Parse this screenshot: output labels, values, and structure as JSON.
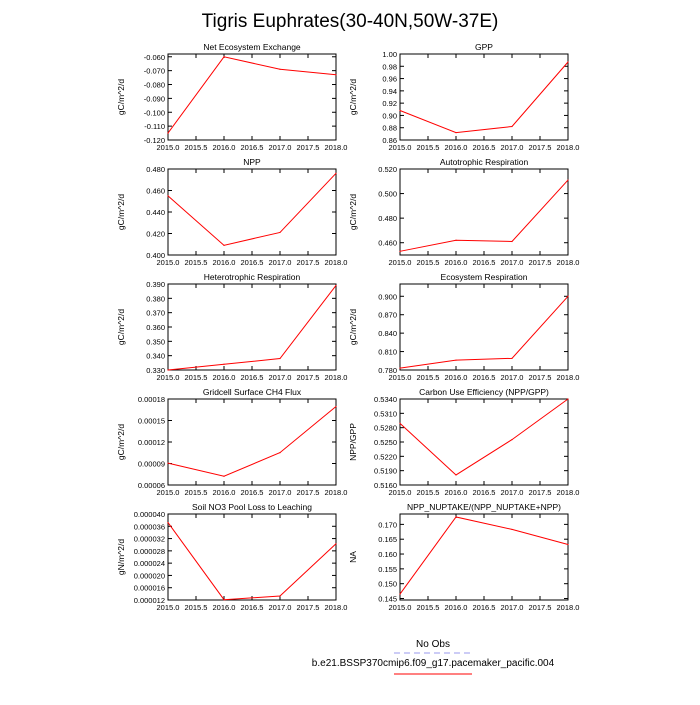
{
  "title": "Tigris Euphrates(30-40N,50W-37E)",
  "legend": {
    "obs_label": "No Obs",
    "obs_color": "#9999ee",
    "model_label": "b.e21.BSSP370cmip6.f09_g17.pacemaker_pacific.004",
    "model_color": "#ff0000"
  },
  "xticks": [
    "2015.0",
    "2015.5",
    "2016.0",
    "2016.5",
    "2017.0",
    "2017.5",
    "2018.0"
  ],
  "chart_data": [
    {
      "type": "line",
      "title": "Net Ecosystem Exchange",
      "ylabel": "gC/m^2/d",
      "x": [
        2015,
        2016,
        2017,
        2018
      ],
      "y": [
        -0.115,
        -0.06,
        -0.069,
        -0.073
      ],
      "xlim": [
        2015,
        2018
      ],
      "ylim": [
        -0.12,
        -0.058
      ],
      "yticks": [
        -0.12,
        -0.11,
        -0.1,
        -0.09,
        -0.08,
        -0.07,
        -0.06
      ],
      "ytick_labels": [
        "-0.120",
        "-0.110",
        "-0.100",
        "-0.090",
        "-0.080",
        "-0.070",
        "-0.060"
      ]
    },
    {
      "type": "line",
      "title": "GPP",
      "ylabel": "gC/m^2/d",
      "x": [
        2015,
        2016,
        2017,
        2018
      ],
      "y": [
        0.908,
        0.872,
        0.882,
        0.987
      ],
      "xlim": [
        2015,
        2018
      ],
      "ylim": [
        0.86,
        1.0
      ],
      "yticks": [
        0.86,
        0.88,
        0.9,
        0.92,
        0.94,
        0.96,
        0.98,
        1.0
      ],
      "ytick_labels": [
        "0.86",
        "0.88",
        "0.90",
        "0.92",
        "0.94",
        "0.96",
        "0.98",
        "1.00"
      ]
    },
    {
      "type": "line",
      "title": "NPP",
      "ylabel": "gC/m^2/d",
      "x": [
        2015,
        2016,
        2017,
        2018
      ],
      "y": [
        0.455,
        0.409,
        0.421,
        0.476
      ],
      "xlim": [
        2015,
        2018
      ],
      "ylim": [
        0.4,
        0.48
      ],
      "yticks": [
        0.4,
        0.42,
        0.44,
        0.46,
        0.48
      ],
      "ytick_labels": [
        "0.400",
        "0.420",
        "0.440",
        "0.460",
        "0.480"
      ]
    },
    {
      "type": "line",
      "title": "Autotrophic Respiration",
      "ylabel": "gC/m^2/d",
      "x": [
        2015,
        2016,
        2017,
        2018
      ],
      "y": [
        0.453,
        0.462,
        0.461,
        0.511
      ],
      "xlim": [
        2015,
        2018
      ],
      "ylim": [
        0.45,
        0.52
      ],
      "yticks": [
        0.46,
        0.48,
        0.5,
        0.52
      ],
      "ytick_labels": [
        "0.460",
        "0.480",
        "0.500",
        "0.520"
      ]
    },
    {
      "type": "line",
      "title": "Heterotrophic Respiration",
      "ylabel": "gC/m^2/d",
      "x": [
        2015,
        2016,
        2017,
        2018
      ],
      "y": [
        0.33,
        0.334,
        0.338,
        0.389
      ],
      "xlim": [
        2015,
        2018
      ],
      "ylim": [
        0.33,
        0.39
      ],
      "yticks": [
        0.33,
        0.34,
        0.35,
        0.36,
        0.37,
        0.38,
        0.39
      ],
      "ytick_labels": [
        "0.330",
        "0.340",
        "0.350",
        "0.360",
        "0.370",
        "0.380",
        "0.390"
      ]
    },
    {
      "type": "line",
      "title": "Ecosystem Respiration",
      "ylabel": "gC/m^2/d",
      "x": [
        2015,
        2016,
        2017,
        2018
      ],
      "y": [
        0.783,
        0.796,
        0.799,
        0.9
      ],
      "xlim": [
        2015,
        2018
      ],
      "ylim": [
        0.78,
        0.92
      ],
      "yticks": [
        0.78,
        0.81,
        0.84,
        0.87,
        0.9
      ],
      "ytick_labels": [
        "0.780",
        "0.810",
        "0.840",
        "0.870",
        "0.900"
      ]
    },
    {
      "type": "line",
      "title": "Gridcell Surface CH4 Flux",
      "ylabel": "gC/m^2/d",
      "x": [
        2015,
        2016,
        2017,
        2018
      ],
      "y": [
        9.05e-05,
        7.22e-05,
        0.0001052,
        0.0001695
      ],
      "xlim": [
        2015,
        2018
      ],
      "ylim": [
        6e-05,
        0.00018
      ],
      "yticks": [
        6e-05,
        9e-05,
        0.00012,
        0.00015,
        0.00018
      ],
      "ytick_labels": [
        "0.00006",
        "0.00009",
        "0.00012",
        "0.00015",
        "0.00018"
      ]
    },
    {
      "type": "line",
      "title": "Carbon Use Efficiency (NPP/GPP)",
      "ylabel": "NPP/GPP",
      "x": [
        2015,
        2016,
        2017,
        2018
      ],
      "y": [
        0.5289,
        0.5181,
        0.5255,
        0.534
      ],
      "xlim": [
        2015,
        2018
      ],
      "ylim": [
        0.516,
        0.534
      ],
      "yticks": [
        0.516,
        0.519,
        0.522,
        0.525,
        0.528,
        0.531,
        0.534
      ],
      "ytick_labels": [
        "0.5160",
        "0.5190",
        "0.5220",
        "0.5250",
        "0.5280",
        "0.5310",
        "0.5340"
      ]
    },
    {
      "type": "line",
      "title": "Soil NO3 Pool Loss to Leaching",
      "ylabel": "gN/m^2/d",
      "x": [
        2015,
        2016,
        2017,
        2018
      ],
      "y": [
        3.72e-05,
        1.21e-05,
        1.33e-05,
        3.03e-05
      ],
      "xlim": [
        2015,
        2018
      ],
      "ylim": [
        1.2e-05,
        4e-05
      ],
      "yticks": [
        1.2e-05,
        1.6e-05,
        2e-05,
        2.4e-05,
        2.8e-05,
        3.2e-05,
        3.6e-05,
        4e-05
      ],
      "ytick_labels": [
        "0.000012",
        "0.000016",
        "0.000020",
        "0.000024",
        "0.000028",
        "0.000032",
        "0.000036",
        "0.000040"
      ]
    },
    {
      "type": "line",
      "title": "NPP_NUPTAKE/(NPP_NUPTAKE+NPP)",
      "ylabel": "NA",
      "x": [
        2015,
        2016,
        2017,
        2018
      ],
      "y": [
        0.1465,
        0.1725,
        0.1683,
        0.1632
      ],
      "xlim": [
        2015,
        2018
      ],
      "ylim": [
        0.1445,
        0.1735
      ],
      "yticks": [
        0.145,
        0.15,
        0.155,
        0.16,
        0.165,
        0.17
      ],
      "ytick_labels": [
        "0.145",
        "0.150",
        "0.155",
        "0.160",
        "0.165",
        "0.170"
      ]
    }
  ]
}
